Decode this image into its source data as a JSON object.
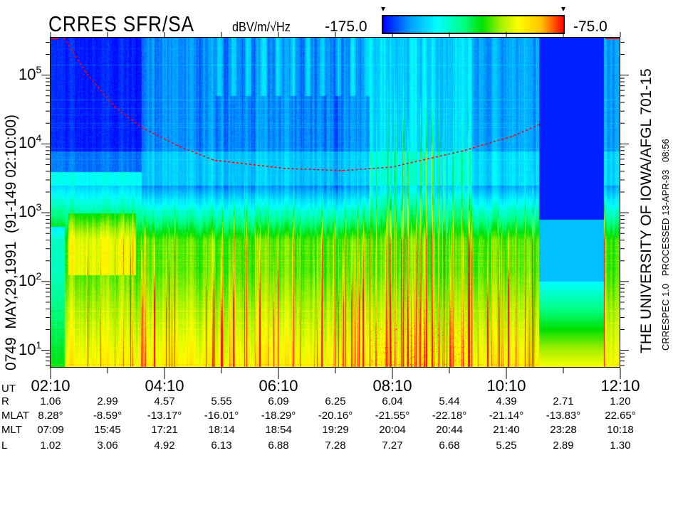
{
  "header": {
    "title": "CRRES SFR/SA",
    "units": "dBV/m/√Hz",
    "colorbar_min_label": "-175.0",
    "colorbar_max_label": "-75.0"
  },
  "left_label": "0749  MAY,29,1991  (91-149 02:10:00)",
  "right_label_main": "THE UNIVERSITY OF IOWA/AFGL 701-15",
  "right_label_sub": "CRRESPEC 1.0   PROCESSED 13-APR-93   08:56",
  "chart_data": {
    "type": "heatmap",
    "title": "CRRES SFR/SA",
    "colorbar": {
      "min": -175.0,
      "max": -75.0,
      "units": "dBV/m/√Hz",
      "colors": [
        "#0000ff",
        "#00ffff",
        "#00e000",
        "#ffff00",
        "#ff0000"
      ]
    },
    "x_axis": {
      "label": "UT",
      "range": [
        "02:10",
        "12:10"
      ],
      "tick_labels": [
        "02:10",
        "04:10",
        "06:10",
        "08:10",
        "10:10",
        "12:10"
      ]
    },
    "y_axis": {
      "scale": "log",
      "range": [
        5.6,
        350000
      ],
      "tick_values": [
        10,
        100,
        1000,
        10000,
        100000
      ],
      "tick_labels": [
        {
          "base": "10",
          "exp": "1"
        },
        {
          "base": "10",
          "exp": "2"
        },
        {
          "base": "10",
          "exp": "3"
        },
        {
          "base": "10",
          "exp": "4"
        },
        {
          "base": "10",
          "exp": "5"
        }
      ]
    },
    "data_gap": {
      "start": "10:44",
      "end": "11:52"
    },
    "red_dashed_curve": {
      "color": "#ff0000",
      "points": [
        [
          "02:24",
          350000
        ],
        [
          "02:47",
          110000
        ],
        [
          "03:17",
          35000
        ],
        [
          "03:47",
          17000
        ],
        [
          "04:24",
          9400
        ],
        [
          "05:02",
          5800
        ],
        [
          "06:17",
          4400
        ],
        [
          "07:17",
          4100
        ],
        [
          "08:09",
          4600
        ],
        [
          "09:24",
          7900
        ],
        [
          "10:17",
          13000
        ],
        [
          "10:44",
          19000
        ]
      ]
    },
    "ephemeris_table": [
      {
        "label": "UT",
        "values": [
          "02:10",
          "",
          "04:10",
          "",
          "06:10",
          "",
          "08:10",
          "",
          "10:10",
          "",
          "12:10"
        ]
      },
      {
        "label": "R",
        "values": [
          "1.06",
          "2.99",
          "4.57",
          "5.55",
          "6.09",
          "6.25",
          "6.04",
          "5.44",
          "4.39",
          "2.71",
          "1.20"
        ]
      },
      {
        "label": "MLAT",
        "values": [
          "8.28°",
          "-8.59°",
          "-13.17°",
          "-16.01°",
          "-18.29°",
          "-20.16°",
          "-21.55°",
          "-22.18°",
          "-21.14°",
          "-13.83°",
          "22.65°"
        ]
      },
      {
        "label": "MLT",
        "values": [
          "07:09",
          "15:45",
          "17:21",
          "18:14",
          "18:54",
          "19:29",
          "20:04",
          "20:44",
          "21:40",
          "23:28",
          "10:18"
        ]
      },
      {
        "label": "L",
        "values": [
          "1.02",
          "3.06",
          "4.92",
          "6.13",
          "6.88",
          "7.28",
          "7.27",
          "6.68",
          "5.25",
          "2.89",
          "1.30"
        ]
      }
    ]
  }
}
